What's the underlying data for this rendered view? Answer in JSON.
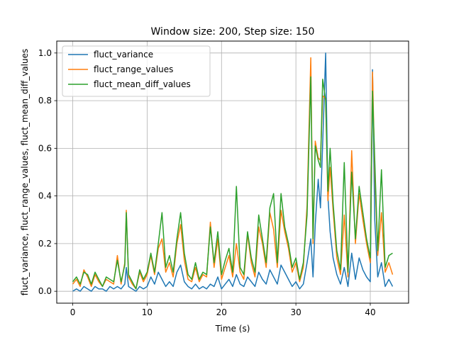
{
  "chart_data": {
    "type": "line",
    "title": "Window size: 200, Step size: 150",
    "xlabel": "Time (s)",
    "ylabel": "fluct_variance, fluct_range_values, fluct_mean_diff_values",
    "xlim": [
      -2.15,
      45.15
    ],
    "ylim": [
      -0.05,
      1.05
    ],
    "xticks": [
      0,
      10,
      20,
      30,
      40
    ],
    "yticks": [
      0.0,
      0.2,
      0.4,
      0.6,
      0.8,
      1.0
    ],
    "xtick_labels": [
      "0",
      "10",
      "20",
      "30",
      "40"
    ],
    "ytick_labels": [
      "0.0",
      "0.2",
      "0.4",
      "0.6",
      "0.8",
      "1.0"
    ],
    "grid": true,
    "legend_position": "top-left",
    "x_range": [
      0,
      43
    ],
    "series": [
      {
        "name": "fluct_variance",
        "color": "#1f77b4",
        "x": [
          0,
          0.5,
          1,
          1.5,
          2,
          2.5,
          3,
          3.5,
          4,
          4.5,
          5,
          5.5,
          6,
          6.5,
          7,
          7.2,
          7.5,
          8,
          8.5,
          9,
          9.5,
          10,
          10.5,
          11,
          11.5,
          12,
          12.5,
          13,
          13.5,
          14,
          14.5,
          15,
          15.5,
          16,
          16.5,
          17,
          17.5,
          18,
          18.5,
          19,
          19.5,
          20,
          20.5,
          21,
          21.5,
          22,
          22.5,
          23,
          23.5,
          24,
          24.5,
          25,
          25.5,
          26,
          26.5,
          27,
          27.5,
          28,
          28.5,
          29,
          29.5,
          30,
          30.5,
          31,
          31.5,
          32,
          32.3,
          32.6,
          33,
          33.3,
          33.6,
          34,
          34.3,
          34.6,
          35,
          35.5,
          36,
          36.5,
          37,
          37.5,
          38,
          38.5,
          39,
          39.5,
          40,
          40.3,
          40.6,
          41,
          41.5,
          42,
          42.5,
          43
        ],
        "y": [
          0.0,
          0.01,
          0.0,
          0.02,
          0.01,
          0.0,
          0.02,
          0.01,
          0.01,
          0.0,
          0.02,
          0.01,
          0.02,
          0.01,
          0.03,
          0.1,
          0.02,
          0.01,
          0.0,
          0.02,
          0.01,
          0.02,
          0.06,
          0.03,
          0.08,
          0.05,
          0.02,
          0.04,
          0.02,
          0.08,
          0.11,
          0.04,
          0.02,
          0.01,
          0.03,
          0.01,
          0.02,
          0.01,
          0.03,
          0.02,
          0.06,
          0.01,
          0.03,
          0.05,
          0.02,
          0.07,
          0.03,
          0.02,
          0.06,
          0.04,
          0.02,
          0.08,
          0.05,
          0.03,
          0.09,
          0.06,
          0.03,
          0.11,
          0.08,
          0.05,
          0.02,
          0.04,
          0.01,
          0.03,
          0.12,
          0.22,
          0.06,
          0.28,
          0.47,
          0.35,
          0.62,
          1.0,
          0.4,
          0.25,
          0.14,
          0.07,
          0.03,
          0.1,
          0.02,
          0.16,
          0.05,
          0.14,
          0.09,
          0.06,
          0.04,
          0.93,
          0.3,
          0.06,
          0.12,
          0.02,
          0.05,
          0.02
        ]
      },
      {
        "name": "fluct_range_values",
        "color": "#ff7f0e",
        "x": [
          0,
          0.5,
          1,
          1.5,
          2,
          2.5,
          3,
          3.5,
          4,
          4.5,
          5,
          5.5,
          6,
          6.5,
          7,
          7.2,
          7.5,
          8,
          8.5,
          9,
          9.5,
          10,
          10.5,
          11,
          11.5,
          12,
          12.5,
          13,
          13.5,
          14,
          14.5,
          15,
          15.5,
          16,
          16.5,
          17,
          17.5,
          18,
          18.5,
          19,
          19.5,
          20,
          20.5,
          21,
          21.5,
          22,
          22.5,
          23,
          23.5,
          24,
          24.5,
          25,
          25.5,
          26,
          26.5,
          27,
          27.5,
          28,
          28.5,
          29,
          29.5,
          30,
          30.5,
          31,
          31.5,
          32,
          32.3,
          32.6,
          33,
          33.3,
          33.6,
          34,
          34.3,
          34.6,
          35,
          35.5,
          36,
          36.5,
          37,
          37.5,
          38,
          38.5,
          39,
          39.5,
          40,
          40.3,
          40.6,
          41,
          41.5,
          42,
          42.5,
          43
        ],
        "y": [
          0.03,
          0.05,
          0.02,
          0.09,
          0.06,
          0.02,
          0.07,
          0.04,
          0.02,
          0.05,
          0.04,
          0.03,
          0.15,
          0.03,
          0.12,
          0.34,
          0.06,
          0.03,
          0.01,
          0.08,
          0.04,
          0.07,
          0.15,
          0.07,
          0.18,
          0.22,
          0.08,
          0.12,
          0.06,
          0.2,
          0.28,
          0.13,
          0.05,
          0.04,
          0.1,
          0.04,
          0.07,
          0.06,
          0.29,
          0.1,
          0.22,
          0.05,
          0.1,
          0.15,
          0.06,
          0.2,
          0.08,
          0.05,
          0.24,
          0.12,
          0.06,
          0.27,
          0.2,
          0.1,
          0.33,
          0.26,
          0.1,
          0.34,
          0.25,
          0.18,
          0.08,
          0.12,
          0.04,
          0.1,
          0.36,
          0.98,
          0.2,
          0.63,
          0.56,
          0.55,
          0.82,
          0.81,
          0.38,
          0.52,
          0.34,
          0.14,
          0.07,
          0.32,
          0.06,
          0.59,
          0.2,
          0.41,
          0.3,
          0.2,
          0.12,
          0.92,
          0.5,
          0.15,
          0.33,
          0.08,
          0.12,
          0.07
        ]
      },
      {
        "name": "fluct_mean_diff_values",
        "color": "#2ca02c",
        "x": [
          0,
          0.5,
          1,
          1.5,
          2,
          2.5,
          3,
          3.5,
          4,
          4.5,
          5,
          5.5,
          6,
          6.5,
          7,
          7.2,
          7.5,
          8,
          8.5,
          9,
          9.5,
          10,
          10.5,
          11,
          11.5,
          12,
          12.5,
          13,
          13.5,
          14,
          14.5,
          15,
          15.5,
          16,
          16.5,
          17,
          17.5,
          18,
          18.5,
          19,
          19.5,
          20,
          20.5,
          21,
          21.5,
          22,
          22.5,
          23,
          23.5,
          24,
          24.5,
          25,
          25.5,
          26,
          26.5,
          27,
          27.5,
          28,
          28.5,
          29,
          29.5,
          30,
          30.5,
          31,
          31.5,
          32,
          32.3,
          32.6,
          33,
          33.3,
          33.6,
          34,
          34.3,
          34.6,
          35,
          35.5,
          36,
          36.5,
          37,
          37.5,
          38,
          38.5,
          39,
          39.5,
          40,
          40.3,
          40.6,
          41,
          41.5,
          42,
          42.5,
          43
        ],
        "y": [
          0.04,
          0.06,
          0.03,
          0.08,
          0.07,
          0.03,
          0.08,
          0.05,
          0.02,
          0.06,
          0.05,
          0.04,
          0.13,
          0.04,
          0.11,
          0.33,
          0.07,
          0.04,
          0.01,
          0.09,
          0.05,
          0.08,
          0.16,
          0.08,
          0.2,
          0.33,
          0.1,
          0.15,
          0.08,
          0.22,
          0.33,
          0.16,
          0.07,
          0.05,
          0.12,
          0.05,
          0.08,
          0.07,
          0.27,
          0.12,
          0.25,
          0.07,
          0.13,
          0.18,
          0.08,
          0.44,
          0.1,
          0.07,
          0.25,
          0.14,
          0.08,
          0.32,
          0.22,
          0.12,
          0.35,
          0.41,
          0.12,
          0.41,
          0.27,
          0.2,
          0.1,
          0.14,
          0.05,
          0.12,
          0.32,
          0.9,
          0.22,
          0.61,
          0.55,
          0.52,
          0.89,
          0.8,
          0.42,
          0.6,
          0.37,
          0.17,
          0.09,
          0.54,
          0.08,
          0.5,
          0.22,
          0.44,
          0.33,
          0.22,
          0.14,
          0.84,
          0.55,
          0.17,
          0.51,
          0.1,
          0.15,
          0.16
        ]
      }
    ]
  }
}
